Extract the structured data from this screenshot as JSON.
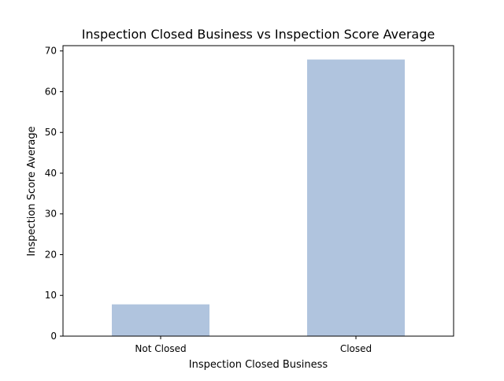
{
  "chart_data": {
    "type": "bar",
    "title": "Inspection Closed Business vs Inspection Score Average",
    "xlabel": "Inspection Closed Business",
    "ylabel": "Inspection Score Average",
    "categories": [
      "Not Closed",
      "Closed"
    ],
    "values": [
      7.8,
      67.9
    ],
    "ylim": [
      0,
      71.3
    ],
    "yticks": [
      0,
      10,
      20,
      30,
      40,
      50,
      60,
      70
    ],
    "bar_color": "#b0c4de",
    "grid": false,
    "legend": "none"
  }
}
